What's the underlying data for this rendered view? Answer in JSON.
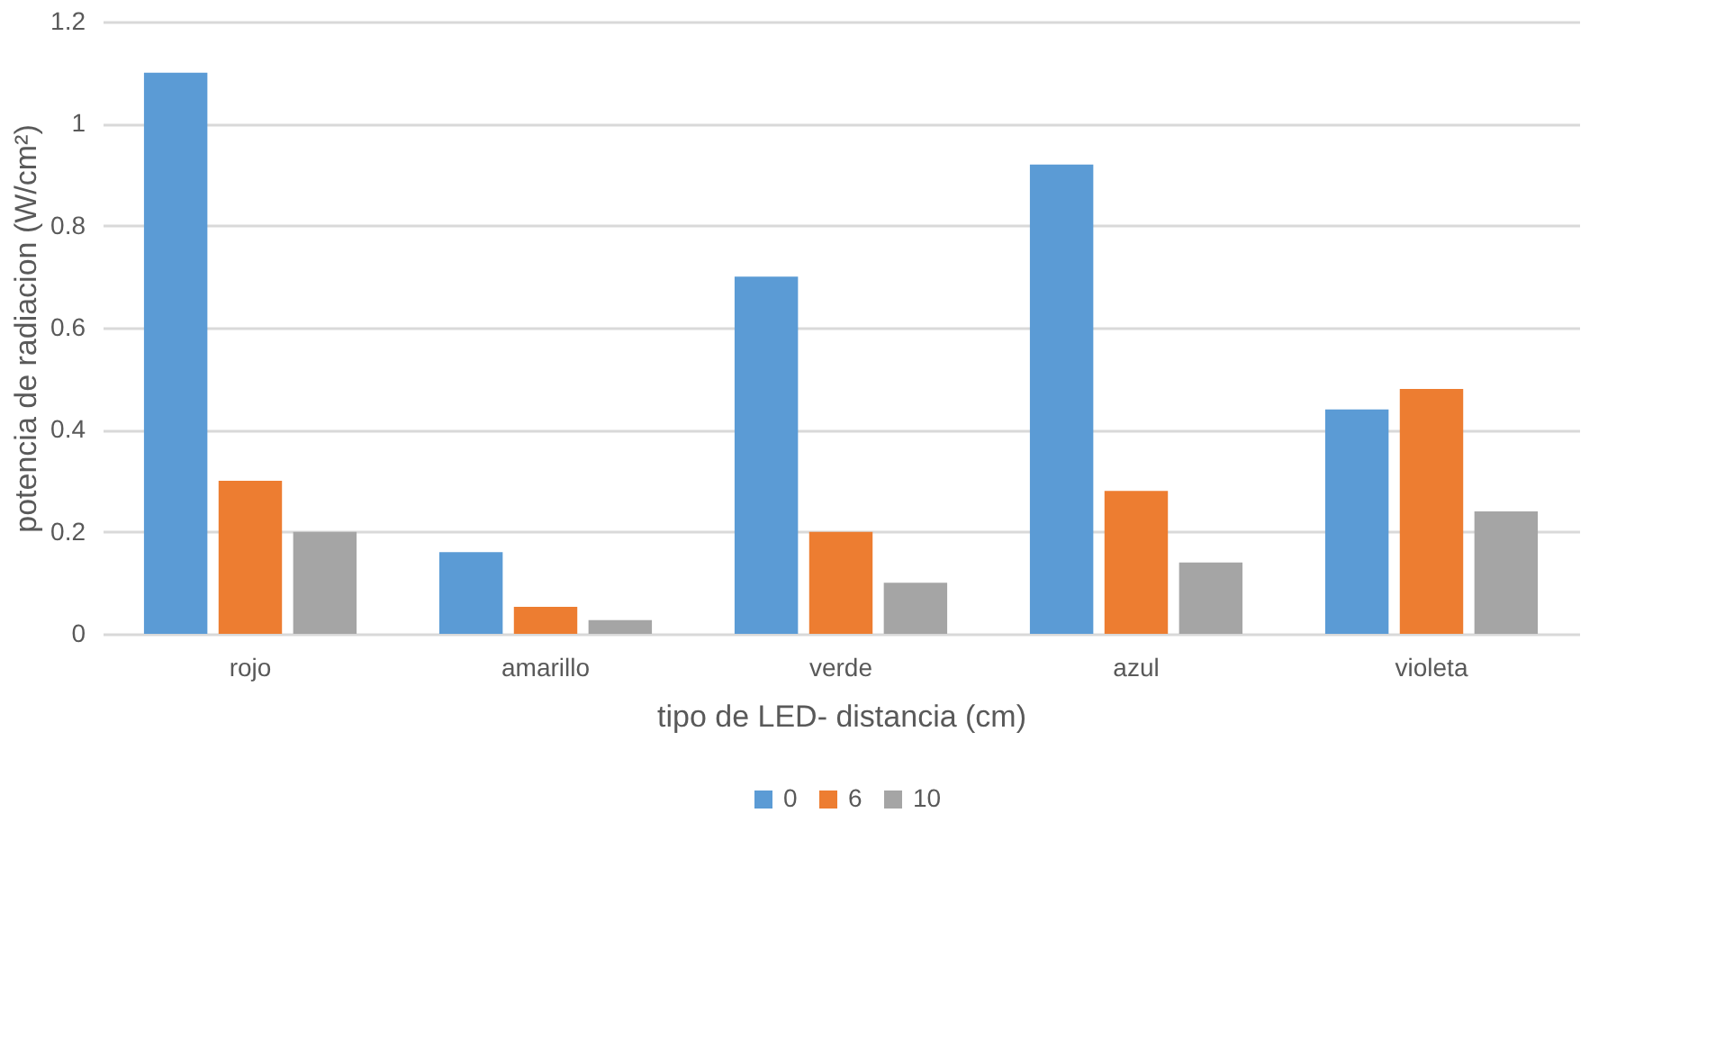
{
  "chart_data": {
    "type": "bar",
    "xlabel": "tipo de LED- distancia (cm)",
    "ylabel": "potencia de radiacion (W/cm²)",
    "categories": [
      "rojo",
      "amarillo",
      "verde",
      "azul",
      "violeta"
    ],
    "series": [
      {
        "name": "0",
        "color": "#5b9bd5",
        "values": [
          1.1,
          0.16,
          0.7,
          0.92,
          0.44
        ]
      },
      {
        "name": "6",
        "color": "#ed7d31",
        "values": [
          0.3,
          0.053,
          0.2,
          0.28,
          0.48
        ]
      },
      {
        "name": "10",
        "color": "#a5a5a5",
        "values": [
          0.2,
          0.027,
          0.1,
          0.14,
          0.24
        ]
      }
    ],
    "ylim": [
      0,
      1.2
    ],
    "yticks": [
      0,
      0.2,
      0.4,
      0.6,
      0.8,
      1,
      1.2
    ],
    "grid": "y",
    "legend": "bottom"
  }
}
